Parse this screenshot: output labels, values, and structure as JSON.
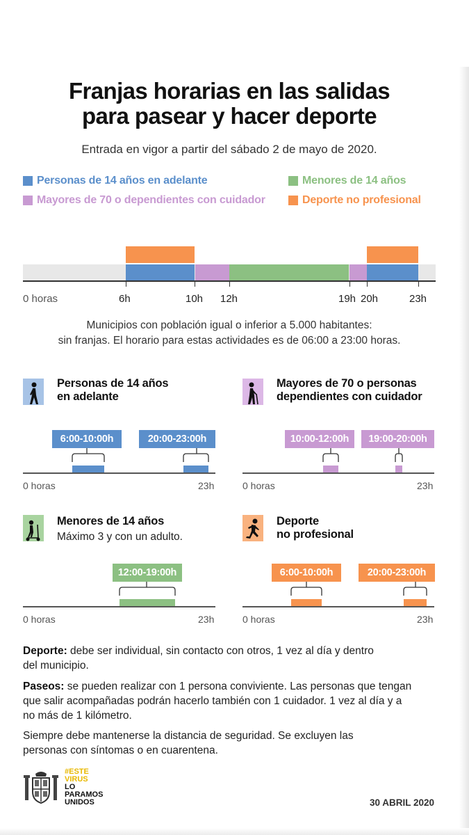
{
  "title_line1": "Franjas horarias en las salidas",
  "title_line2": "para pasear y hacer deporte",
  "subtitle": "Entrada en vigor a partir del sábado 2 de mayo de 2020.",
  "colors": {
    "blue": "#5b8fcb",
    "purple": "#c89ad2",
    "green": "#8cc082",
    "orange": "#f7934e"
  },
  "legend": {
    "adults": "Personas de 14 años en adelante",
    "children": "Menores de 14 años",
    "seniors": "Mayores de 70 o dependientes con cuidador",
    "sport": "Deporte no profesional"
  },
  "timeline": {
    "labels": {
      "h0": "0 horas",
      "h6": "6h",
      "h10": "10h",
      "h12": "12h",
      "h19": "19h",
      "h20": "20h",
      "h23": "23h"
    }
  },
  "note_line1": "Municipios con población igual o inferior a 5.000 habitantes:",
  "note_line2": "sin franjas. El horario para estas actividades es de 06:00 a 23:00 horas.",
  "panels": {
    "adults": {
      "title1": "Personas de 14 años",
      "title2": "en adelante",
      "chip1": "6:00-10:00h",
      "chip2": "20:00-23:00h",
      "axis_start": "0 horas",
      "axis_end": "23h",
      "icon": "walking-person-icon"
    },
    "seniors": {
      "title1": "Mayores de 70 o personas",
      "title2": "dependientes con cuidador",
      "chip1": "10:00-12:00h",
      "chip2": "19:00-20:00h",
      "axis_start": "0 horas",
      "axis_end": "23h",
      "icon": "elderly-cane-icon"
    },
    "children": {
      "title1": "Menores de 14 años",
      "sub": "Máximo 3 y con un adulto.",
      "chip1": "12:00-19:00h",
      "axis_start": "0 horas",
      "axis_end": "23h",
      "icon": "scooter-child-icon"
    },
    "sport": {
      "title1": "Deporte",
      "title2": "no profesional",
      "chip1": "6:00-10:00h",
      "chip2": "20:00-23:00h",
      "axis_start": "0 horas",
      "axis_end": "23h",
      "icon": "running-person-icon"
    }
  },
  "paragraphs": {
    "p1_bold": "Deporte:",
    "p1_line1": " debe ser individual, sin contacto con otros, 1 vez al día y dentro",
    "p1_line2": "del municipio.",
    "p2_bold": "Paseos:",
    "p2_line1": " se pueden realizar con 1 persona conviviente. Las personas que tengan",
    "p2_line2": "que salir acompañadas podrán hacerlo también con 1 cuidador. 1 vez al día y a",
    "p2_line3": "no más de 1 kilómetro.",
    "p3_line1": "Siempre debe mantenerse la distancia de seguridad. Se excluyen las",
    "p3_line2": "personas con síntomas o en cuarentena."
  },
  "footer": {
    "hashtag_line1": "#ESTE",
    "hashtag_line2": "VIRUS",
    "hashtag_line3": "LO",
    "hashtag_line4": "PARAMOS",
    "hashtag_line5": "UNIDOS",
    "date": "30 ABRIL 2020"
  }
}
